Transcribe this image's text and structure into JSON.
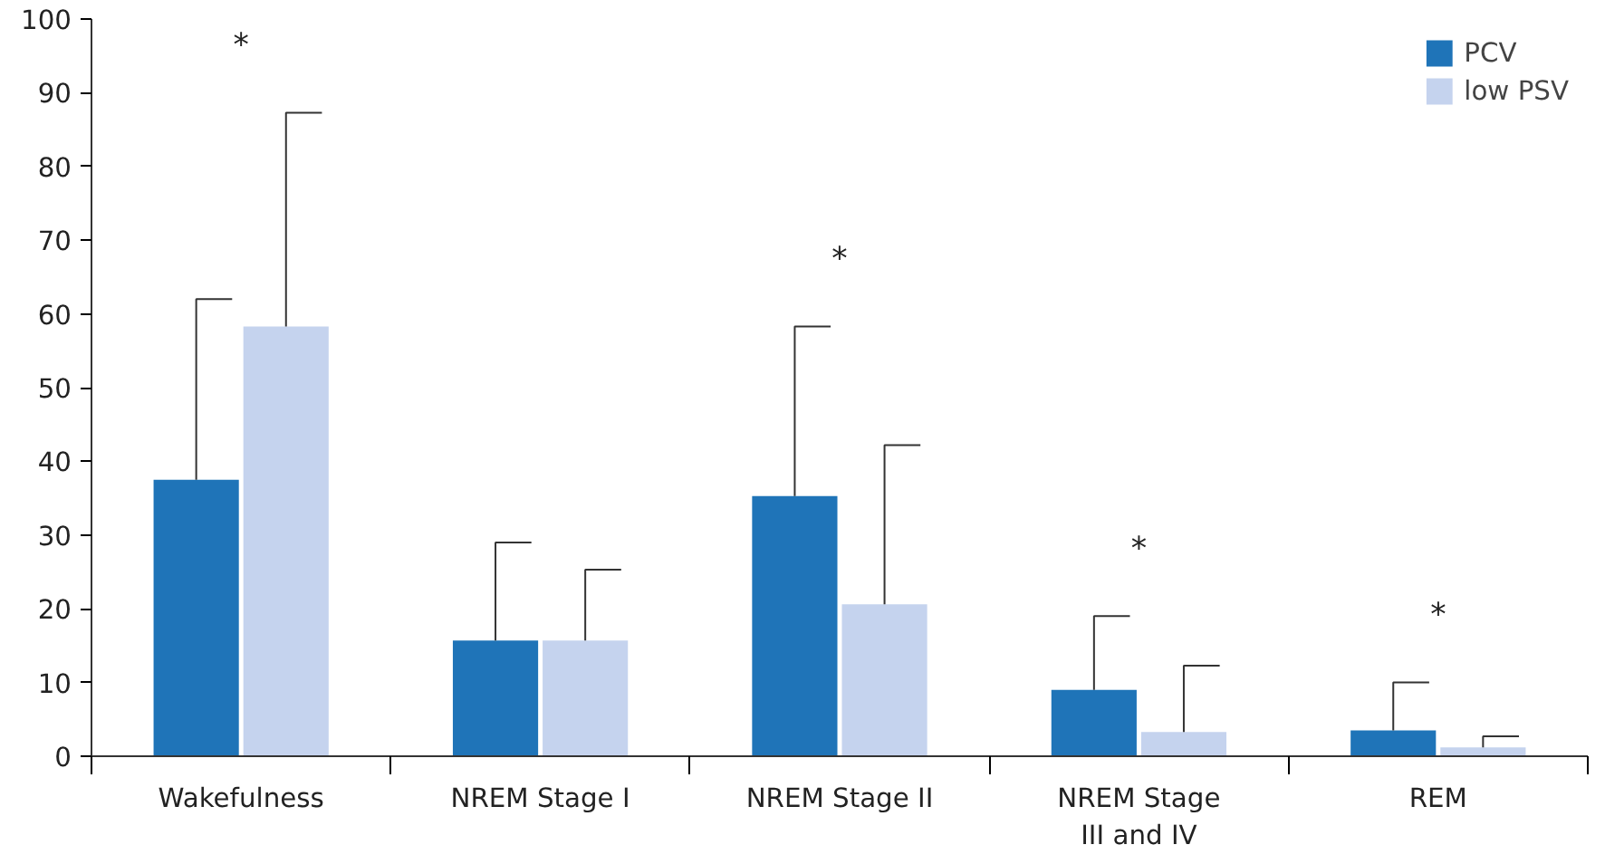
{
  "chart_data": {
    "type": "bar",
    "categories": [
      "Wakefulness",
      "NREM Stage I",
      "NREM Stage II",
      "NREM Stage\nIII and IV",
      "REM"
    ],
    "series": [
      {
        "name": "PCV",
        "color": "#1f74b8",
        "values": [
          37.5,
          15.7,
          35.3,
          9.0,
          3.5
        ],
        "errors": [
          [
            37.5,
            62.0
          ],
          [
            15.7,
            29.0
          ],
          [
            35.3,
            58.3
          ],
          [
            9.0,
            19.0
          ],
          [
            3.5,
            10.0
          ]
        ]
      },
      {
        "name": "low PSV",
        "color": "#c5d3ee",
        "values": [
          58.3,
          15.7,
          20.6,
          3.3,
          1.2
        ],
        "errors": [
          [
            58.3,
            87.3
          ],
          [
            15.7,
            25.3
          ],
          [
            20.6,
            42.2
          ],
          [
            3.3,
            12.3
          ],
          [
            1.2,
            2.7
          ]
        ]
      }
    ],
    "annotations": [
      "*",
      "*",
      "*",
      "*"
    ],
    "ylim": [
      0,
      100
    ],
    "yticks": [
      0,
      10,
      20,
      30,
      40,
      50,
      60,
      70,
      80,
      90,
      100
    ],
    "grid": false,
    "legend": "top right"
  }
}
